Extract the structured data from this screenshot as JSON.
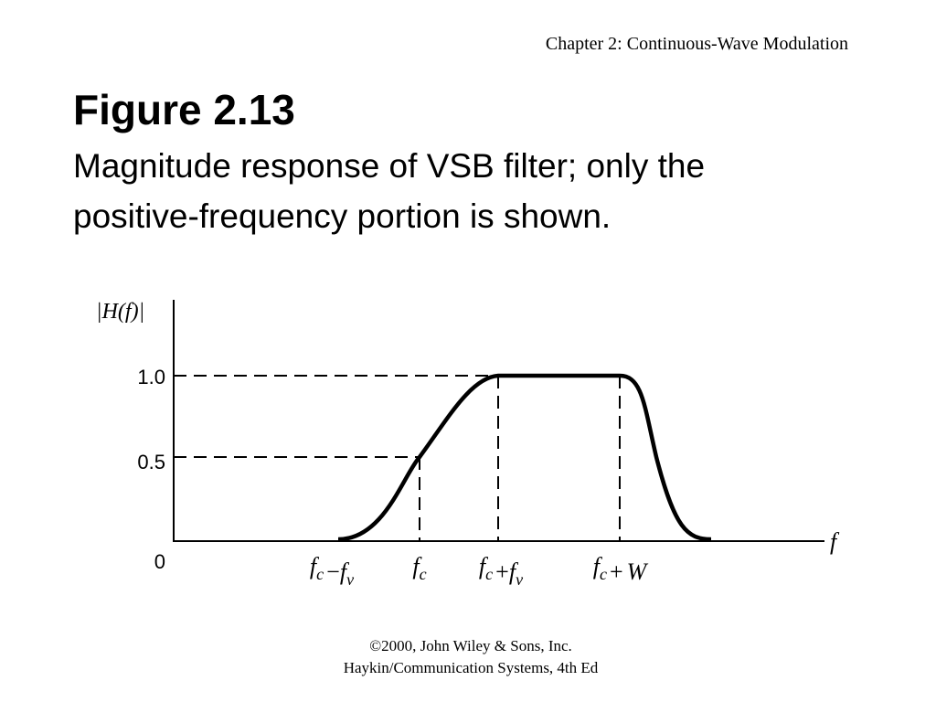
{
  "header": "Chapter 2: Continuous-Wave Modulation",
  "title": "Figure 2.13",
  "subtitle": [
    "Magnitude response of VSB filter; only the",
    "positive-frequency portion is shown."
  ],
  "figure": {
    "y_label": "|H(f)|",
    "x_label": "f",
    "y_ticks": [
      "1.0",
      "0.5",
      "0"
    ],
    "x_labels": [
      [
        [
          "f",
          "c"
        ],
        "−",
        [
          "f",
          "v"
        ]
      ],
      [
        [
          "f",
          "c"
        ]
      ],
      [
        [
          "f",
          "c"
        ],
        "+",
        [
          "f",
          "v"
        ]
      ],
      [
        [
          "f",
          "c"
        ],
        "+",
        "W"
      ]
    ]
  },
  "footer": [
    "©2000, John Wiley & Sons, Inc.",
    "Haykin/Communication Systems, 4th Ed"
  ]
}
